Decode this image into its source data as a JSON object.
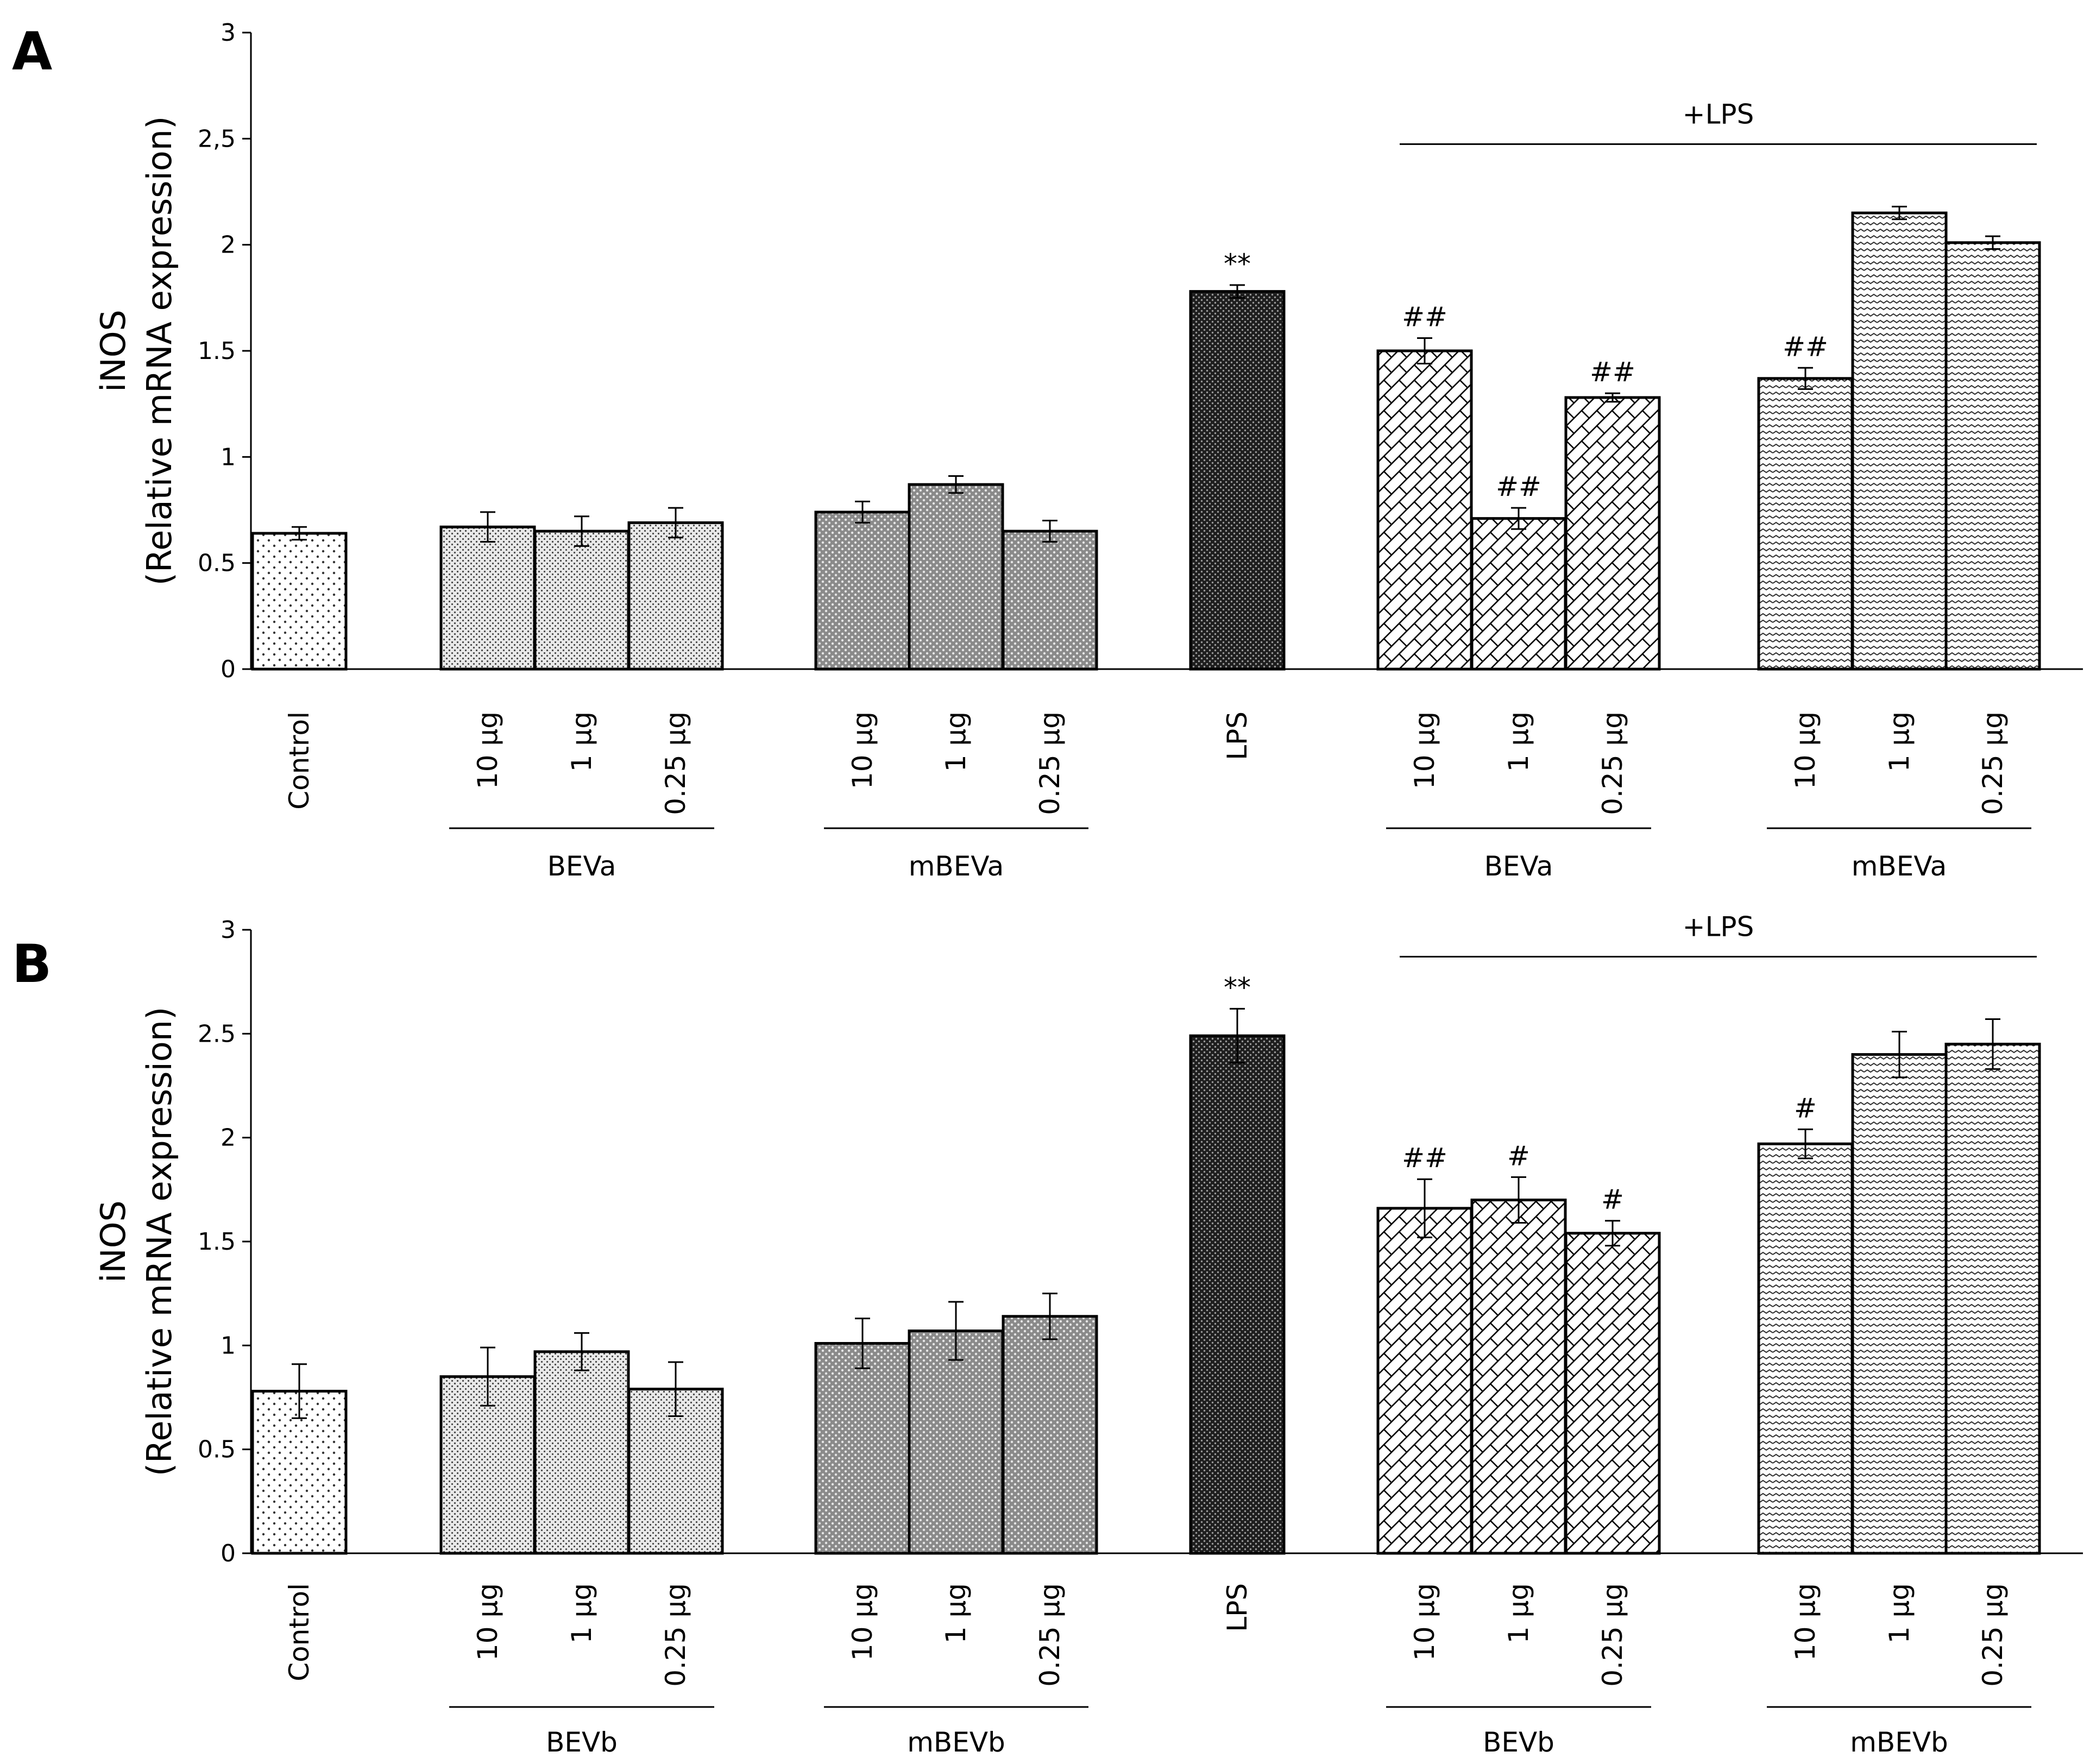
{
  "chart_data": [
    {
      "panel": "A",
      "type": "bar",
      "ylabel_line1": "iNOS",
      "ylabel_line2": "(Relative mRNA expression)",
      "ylim": [
        0,
        3
      ],
      "yticks": [
        "0",
        "0.5",
        "1",
        "1.5",
        "2",
        "2,5",
        "3"
      ],
      "categories": [
        "Control",
        "10 µg",
        "1 µg",
        "0.25 µg",
        "10 µg",
        "1 µg",
        "0.25 µg",
        "LPS",
        "10 µg",
        "1 µg",
        "0.25 µg",
        "10 µg",
        "1 µg",
        "0.25 µg"
      ],
      "values": [
        0.64,
        0.67,
        0.65,
        0.69,
        0.74,
        0.87,
        0.65,
        1.78,
        1.5,
        0.71,
        1.28,
        1.37,
        2.15,
        2.01
      ],
      "errors": [
        0.03,
        0.07,
        0.07,
        0.07,
        0.05,
        0.04,
        0.05,
        0.03,
        0.06,
        0.05,
        0.02,
        0.05,
        0.03,
        0.03
      ],
      "patterns": [
        "dots",
        "fine",
        "fine",
        "fine",
        "grid",
        "grid",
        "grid",
        "dark",
        "cross",
        "cross",
        "cross",
        "zig",
        "zig",
        "zig"
      ],
      "annotations": [
        "",
        "",
        "",
        "",
        "",
        "",
        "",
        "**",
        "##",
        "##",
        "##",
        "##",
        "",
        ""
      ],
      "groups": [
        {
          "label": "BEVa",
          "bars": [
            1,
            3
          ]
        },
        {
          "label": "mBEVa",
          "bars": [
            4,
            6
          ]
        },
        {
          "label": "BEVa",
          "bars": [
            8,
            10
          ]
        },
        {
          "label": "mBEVa",
          "bars": [
            11,
            13
          ]
        }
      ],
      "bracket_label": "+LPS",
      "bracket_bars": [
        8,
        13
      ]
    },
    {
      "panel": "B",
      "type": "bar",
      "ylabel_line1": "iNOS",
      "ylabel_line2": "(Relative mRNA expression)",
      "ylim": [
        0,
        3
      ],
      "yticks": [
        "0",
        "0.5",
        "1",
        "1.5",
        "2",
        "2.5",
        "3"
      ],
      "categories": [
        "Control",
        "10 µg",
        "1 µg",
        "0.25 µg",
        "10 µg",
        "1 µg",
        "0.25 µg",
        "LPS",
        "10 µg",
        "1 µg",
        "0.25 µg",
        "10 µg",
        "1 µg",
        "0.25 µg"
      ],
      "values": [
        0.78,
        0.85,
        0.97,
        0.79,
        1.01,
        1.07,
        1.14,
        2.49,
        1.66,
        1.7,
        1.54,
        1.97,
        2.4,
        2.45
      ],
      "errors": [
        0.13,
        0.14,
        0.09,
        0.13,
        0.12,
        0.14,
        0.11,
        0.13,
        0.14,
        0.11,
        0.06,
        0.07,
        0.11,
        0.12
      ],
      "patterns": [
        "dots",
        "fine",
        "fine",
        "fine",
        "grid",
        "grid",
        "grid",
        "dark",
        "cross",
        "cross",
        "cross",
        "zig",
        "zig",
        "zig"
      ],
      "annotations": [
        "",
        "",
        "",
        "",
        "",
        "",
        "",
        "**",
        "##",
        "#",
        "#",
        "#",
        "",
        ""
      ],
      "groups": [
        {
          "label": "BEVb",
          "bars": [
            1,
            3
          ]
        },
        {
          "label": "mBEVb",
          "bars": [
            4,
            6
          ]
        },
        {
          "label": "BEVb",
          "bars": [
            8,
            10
          ]
        },
        {
          "label": "mBEVb",
          "bars": [
            11,
            13
          ]
        }
      ],
      "bracket_label": "+LPS",
      "bracket_bars": [
        8,
        13
      ]
    }
  ]
}
